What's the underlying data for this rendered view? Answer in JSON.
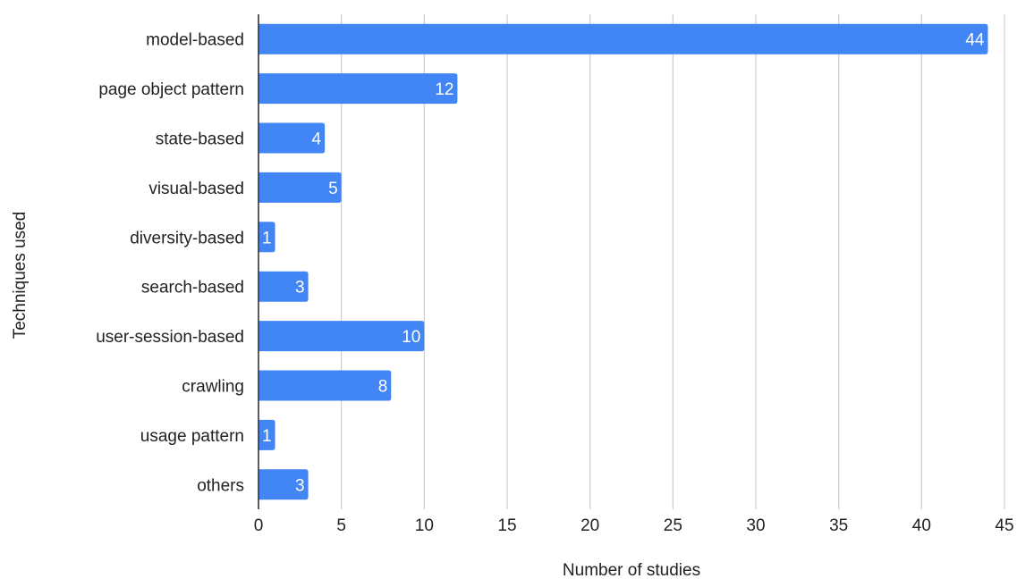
{
  "chart_data": {
    "type": "bar",
    "orientation": "horizontal",
    "title": "",
    "xlabel": "Number of studies",
    "ylabel": "Techniques used",
    "categories": [
      "model-based",
      "page object pattern",
      "state-based",
      "visual-based",
      "diversity-based",
      "search-based",
      "user-session-based",
      "crawling",
      "usage pattern",
      "others"
    ],
    "values": [
      44,
      12,
      4,
      5,
      1,
      3,
      10,
      8,
      1,
      3
    ],
    "xlim": [
      0,
      45
    ],
    "xticks": [
      0,
      5,
      10,
      15,
      20,
      25,
      30,
      35,
      40,
      45
    ],
    "grid": true,
    "legend": "none",
    "bar_color": "#4285f4",
    "label_color": "#ffffff"
  }
}
